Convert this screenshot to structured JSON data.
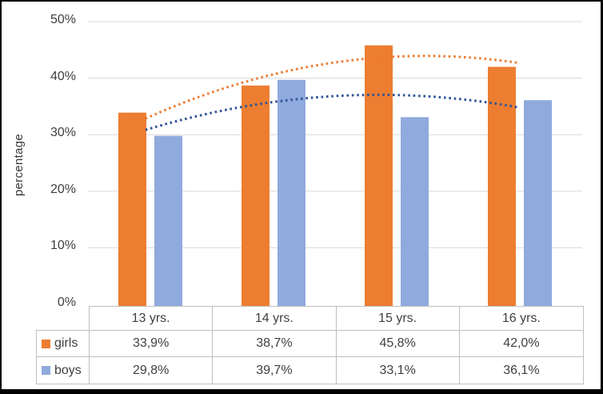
{
  "chart_data": {
    "type": "bar",
    "title": "",
    "xlabel": "",
    "ylabel": "percentage",
    "categories": [
      "13 yrs.",
      "14 yrs.",
      "15 yrs.",
      "16 yrs."
    ],
    "series": [
      {
        "name": "girls",
        "color": "#ED7D31",
        "values": [
          33.9,
          38.7,
          45.8,
          42.0
        ],
        "value_labels": [
          "33,9%",
          "38,7%",
          "45,8%",
          "42,0%"
        ]
      },
      {
        "name": "boys",
        "color": "#8FAADC",
        "values": [
          29.8,
          39.7,
          33.1,
          36.1
        ],
        "value_labels": [
          "29,8%",
          "39,7%",
          "33,1%",
          "36,1%"
        ]
      }
    ],
    "trendlines": [
      {
        "series": "girls",
        "type": "polynomial",
        "order": 2,
        "line_style": "dotted",
        "color": "#ED7D31"
      },
      {
        "series": "boys",
        "type": "polynomial",
        "order": 2,
        "line_style": "dotted",
        "color": "#2F5496"
      }
    ],
    "ylim": [
      0,
      50
    ],
    "ytick_step": 10,
    "ytick_labels": [
      "50%",
      "40%",
      "30%",
      "20%",
      "10%",
      "0%"
    ],
    "grid": true,
    "legend_position": "data-table-left",
    "data_table": true,
    "decimal_separator": ","
  },
  "colors": {
    "background": "#FFFFFF",
    "frame_border": "#000000",
    "gridline": "#D9D9D9",
    "table_border": "#BFBFBF",
    "text": "#3F3F3F"
  }
}
